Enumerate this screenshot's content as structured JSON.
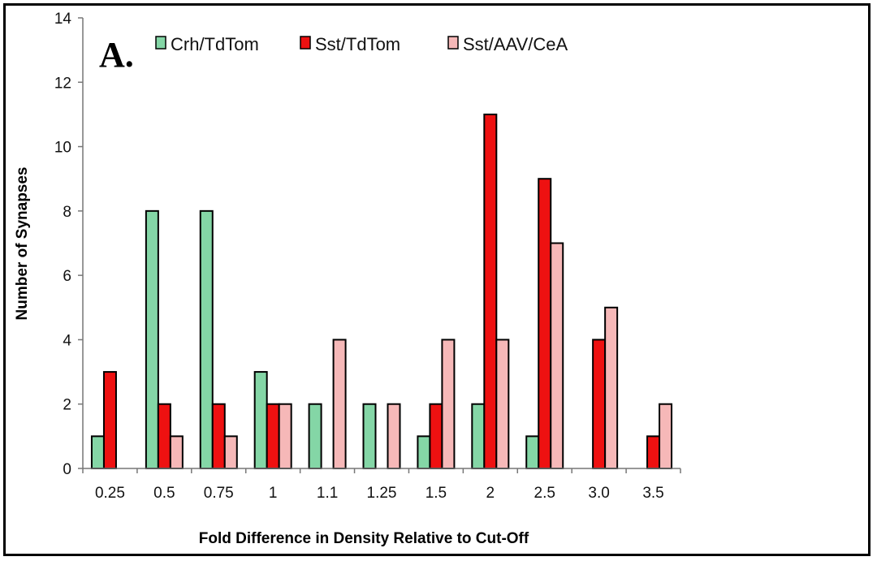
{
  "chart_data": {
    "type": "bar",
    "panel_label": "A.",
    "xlabel": "Fold Difference in Density Relative to Cut-Off",
    "ylabel": "Number of Synapses",
    "ylim": [
      0,
      14
    ],
    "yticks": [
      0,
      2,
      4,
      6,
      8,
      10,
      12,
      14
    ],
    "grid": false,
    "legend_position": "top",
    "categories": [
      "0.25",
      "0.5",
      "0.75",
      "1",
      "1.1",
      "1.25",
      "1.5",
      "2",
      "2.5",
      "3.0",
      "3.5"
    ],
    "series": [
      {
        "name": "Crh/TdTom",
        "color": "#84d6a6",
        "values": [
          1,
          8,
          8,
          3,
          2,
          2,
          1,
          2,
          1,
          0,
          0
        ]
      },
      {
        "name": "Sst/TdTom",
        "color": "#ee1111",
        "values": [
          3,
          2,
          2,
          2,
          0,
          0,
          2,
          11,
          9,
          4,
          1
        ]
      },
      {
        "name": "Sst/AAV/CeA",
        "color": "#f6b8b8",
        "values": [
          0,
          1,
          1,
          2,
          4,
          2,
          4,
          4,
          7,
          5,
          2
        ]
      }
    ]
  }
}
